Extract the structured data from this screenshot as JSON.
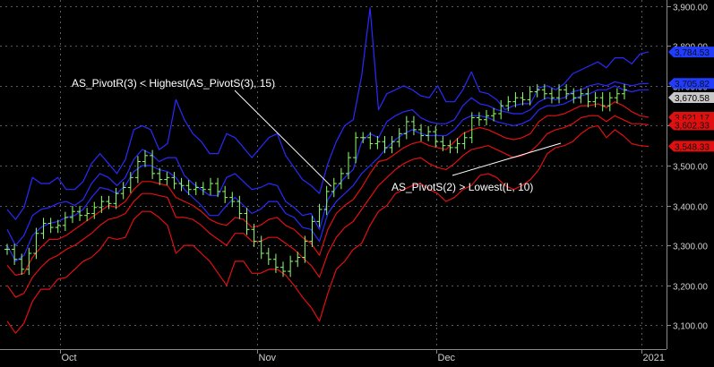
{
  "chart_data": {
    "type": "line",
    "x_ticks": [
      "Oct",
      "Nov",
      "Dec",
      "2021"
    ],
    "y_ticks": [
      "3,900.00",
      "3,800.00",
      "3,700.00",
      "3,600.00",
      "3,500.00",
      "3,400.00",
      "3,300.00",
      "3,200.00",
      "3,100.00"
    ],
    "ylim": [
      3040,
      3915
    ],
    "grid": true,
    "annotations": [
      {
        "text": "AS_PivotR(3) < Highest(AS_PivotS(3), 15)",
        "points_to_bar": 45
      },
      {
        "text": "AS_PivotS(2) > Lowest(L, 10)",
        "points_to_bar": 76
      }
    ],
    "last_value_labels": [
      {
        "text": "3,784.53",
        "value": 3784.53,
        "color": "#1f3cff"
      },
      {
        "text": "3,705.82",
        "value": 3705.82,
        "color": "#1f3cff"
      },
      {
        "text": "3,670.58",
        "value": 3670.58,
        "color": "#c8c8c8"
      },
      {
        "text": "3,621.17",
        "value": 3621.17,
        "color": "#e01010"
      },
      {
        "text": "3,602.33",
        "value": 3602.33,
        "color": "#e01010"
      },
      {
        "text": "3,548.33",
        "value": 3548.33,
        "color": "#e01010"
      }
    ],
    "price_bars": {
      "color": "#90ff70",
      "close": [
        3290,
        3265,
        3240,
        3280,
        3330,
        3355,
        3345,
        3350,
        3370,
        3385,
        3375,
        3380,
        3395,
        3410,
        3405,
        3430,
        3445,
        3470,
        3510,
        3525,
        3480,
        3465,
        3470,
        3455,
        3450,
        3440,
        3445,
        3440,
        3455,
        3435,
        3420,
        3410,
        3380,
        3340,
        3310,
        3280,
        3265,
        3245,
        3235,
        3260,
        3270,
        3310,
        3360,
        3390,
        3435,
        3455,
        3480,
        3520,
        3570,
        3570,
        3555,
        3560,
        3545,
        3560,
        3580,
        3610,
        3590,
        3575,
        3585,
        3560,
        3550,
        3545,
        3555,
        3570,
        3620,
        3615,
        3625,
        3630,
        3650,
        3660,
        3670,
        3665,
        3685,
        3690,
        3680,
        3670,
        3690,
        3680,
        3670,
        3680,
        3660,
        3670,
        3650,
        3670,
        3680,
        3690
      ]
    },
    "series": [
      {
        "color": "#2a2aff",
        "values": [
          3390,
          3365,
          3395,
          3470,
          3455,
          3455,
          3470,
          3440,
          3440,
          3460,
          3505,
          3530,
          3505,
          3480,
          3515,
          3590,
          3600,
          3590,
          3540,
          3555,
          3665,
          3615,
          3580,
          3560,
          3530,
          3530,
          3580,
          3570,
          3545,
          3520,
          3545,
          3570,
          3580,
          3525,
          3495,
          3465,
          3450,
          3430,
          3505,
          3560,
          3600,
          3615,
          3725,
          3895,
          3640,
          3680,
          3690,
          3700,
          3690,
          3675,
          3670,
          3700,
          3660,
          3660,
          3690,
          3735,
          3685,
          3680,
          3665,
          3640,
          3650,
          3655,
          3655,
          3695,
          3700,
          3690,
          3705,
          3730,
          3740,
          3750,
          3760,
          3745,
          3770,
          3770,
          3755,
          3780,
          3785
        ]
      },
      {
        "color": "#2a2aff",
        "values": [
          3340,
          3300,
          3325,
          3375,
          3390,
          3395,
          3405,
          3410,
          3400,
          3415,
          3455,
          3480,
          3470,
          3450,
          3470,
          3515,
          3540,
          3530,
          3510,
          3520,
          3520,
          3475,
          3455,
          3440,
          3425,
          3425,
          3470,
          3480,
          3460,
          3440,
          3445,
          3455,
          3450,
          3410,
          3395,
          3375,
          3380,
          3340,
          3415,
          3445,
          3470,
          3490,
          3560,
          3580,
          3570,
          3610,
          3625,
          3635,
          3640,
          3620,
          3610,
          3605,
          3605,
          3615,
          3650,
          3670,
          3655,
          3650,
          3640,
          3635,
          3630,
          3630,
          3640,
          3660,
          3670,
          3665,
          3670,
          3685,
          3690,
          3700,
          3705,
          3700,
          3710,
          3705,
          3700,
          3705,
          3706
        ]
      },
      {
        "color": "#2a2aff",
        "values": [
          3300,
          3260,
          3275,
          3325,
          3345,
          3355,
          3360,
          3370,
          3375,
          3390,
          3420,
          3445,
          3440,
          3430,
          3450,
          3485,
          3500,
          3500,
          3490,
          3485,
          3470,
          3440,
          3420,
          3400,
          3375,
          3375,
          3400,
          3420,
          3400,
          3380,
          3390,
          3410,
          3410,
          3380,
          3370,
          3345,
          3340,
          3310,
          3380,
          3410,
          3430,
          3450,
          3480,
          3500,
          3520,
          3545,
          3565,
          3580,
          3590,
          3580,
          3575,
          3575,
          3575,
          3590,
          3615,
          3625,
          3625,
          3620,
          3610,
          3605,
          3600,
          3605,
          3615,
          3640,
          3650,
          3650,
          3655,
          3665,
          3675,
          3680,
          3690,
          3690,
          3700,
          3690,
          3685,
          3690,
          3690
        ]
      },
      {
        "color": "#e01010",
        "values": [
          3250,
          3225,
          3230,
          3270,
          3295,
          3315,
          3315,
          3325,
          3340,
          3355,
          3370,
          3385,
          3400,
          3395,
          3410,
          3440,
          3460,
          3460,
          3455,
          3450,
          3420,
          3410,
          3400,
          3385,
          3365,
          3355,
          3350,
          3370,
          3365,
          3345,
          3350,
          3365,
          3370,
          3350,
          3340,
          3320,
          3305,
          3275,
          3340,
          3380,
          3400,
          3415,
          3445,
          3480,
          3510,
          3515,
          3530,
          3545,
          3555,
          3560,
          3550,
          3545,
          3540,
          3560,
          3580,
          3590,
          3595,
          3590,
          3580,
          3570,
          3565,
          3570,
          3580,
          3610,
          3625,
          3625,
          3630,
          3640,
          3650,
          3650,
          3655,
          3645,
          3660,
          3650,
          3635,
          3625,
          3621
        ]
      },
      {
        "color": "#e01010",
        "values": [
          3200,
          3170,
          3180,
          3220,
          3245,
          3265,
          3275,
          3290,
          3300,
          3315,
          3330,
          3350,
          3365,
          3370,
          3380,
          3410,
          3430,
          3430,
          3425,
          3420,
          3370,
          3370,
          3365,
          3350,
          3330,
          3315,
          3300,
          3330,
          3330,
          3310,
          3310,
          3320,
          3320,
          3305,
          3290,
          3270,
          3250,
          3220,
          3280,
          3320,
          3345,
          3360,
          3390,
          3420,
          3450,
          3470,
          3490,
          3505,
          3515,
          3520,
          3505,
          3495,
          3490,
          3505,
          3525,
          3540,
          3545,
          3550,
          3540,
          3530,
          3520,
          3525,
          3535,
          3555,
          3580,
          3590,
          3595,
          3605,
          3620,
          3625,
          3625,
          3610,
          3625,
          3615,
          3605,
          3605,
          3602
        ]
      },
      {
        "color": "#e01010",
        "values": [
          3110,
          3080,
          3105,
          3160,
          3190,
          3190,
          3215,
          3220,
          3240,
          3260,
          3270,
          3290,
          3320,
          3315,
          3320,
          3365,
          3385,
          3385,
          3370,
          3350,
          3280,
          3300,
          3300,
          3280,
          3260,
          3230,
          3200,
          3260,
          3260,
          3230,
          3230,
          3240,
          3240,
          3225,
          3200,
          3170,
          3145,
          3110,
          3180,
          3240,
          3260,
          3290,
          3305,
          3350,
          3385,
          3400,
          3430,
          3440,
          3450,
          3455,
          3440,
          3430,
          3410,
          3420,
          3440,
          3450,
          3475,
          3480,
          3470,
          3450,
          3440,
          3450,
          3465,
          3490,
          3530,
          3545,
          3550,
          3560,
          3580,
          3595,
          3600,
          3570,
          3590,
          3575,
          3555,
          3550,
          3548
        ]
      }
    ]
  }
}
